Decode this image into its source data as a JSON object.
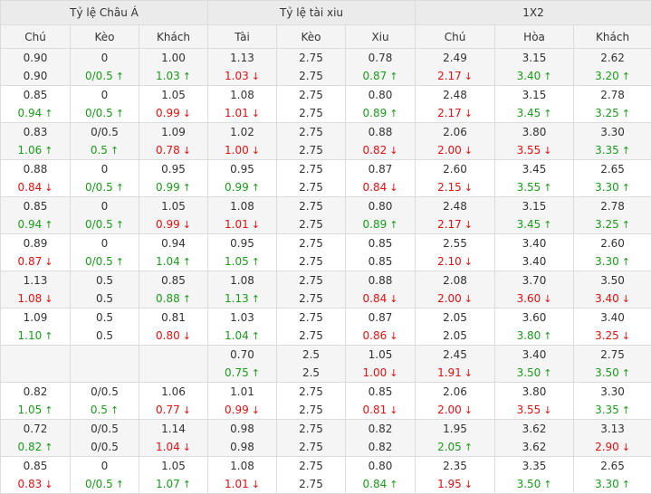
{
  "groups": [
    "Tỷ lệ Châu Á",
    "Tỷ lệ tài xiu",
    "1X2"
  ],
  "columns": [
    "Chú",
    "Kèo",
    "Khách",
    "Tài",
    "Kèo",
    "Xiu",
    "Chú",
    "Hòa",
    "Khách"
  ],
  "arrows": {
    "up": "↑",
    "down": "↓"
  },
  "colors": {
    "up": "#1b9a1b",
    "down": "#e01010",
    "header_bg": "#ebebeb",
    "subheader_bg": "#f4f4f4",
    "alt_row_bg": "#f5f5f5"
  },
  "rows": [
    {
      "cells": [
        {
          "top": "0.90",
          "bottom": "0.90",
          "dir": ""
        },
        {
          "top": "0",
          "bottom": "0/0.5",
          "dir": "up"
        },
        {
          "top": "1.00",
          "bottom": "1.03",
          "dir": "up"
        },
        {
          "top": "1.13",
          "bottom": "1.03",
          "dir": "down"
        },
        {
          "top": "2.75",
          "bottom": "2.75",
          "dir": ""
        },
        {
          "top": "0.78",
          "bottom": "0.87",
          "dir": "up"
        },
        {
          "top": "2.49",
          "bottom": "2.17",
          "dir": "down"
        },
        {
          "top": "3.15",
          "bottom": "3.40",
          "dir": "up"
        },
        {
          "top": "2.62",
          "bottom": "3.20",
          "dir": "up"
        }
      ]
    },
    {
      "cells": [
        {
          "top": "0.85",
          "bottom": "0.94",
          "dir": "up"
        },
        {
          "top": "0",
          "bottom": "0/0.5",
          "dir": "up"
        },
        {
          "top": "1.05",
          "bottom": "0.99",
          "dir": "down"
        },
        {
          "top": "1.08",
          "bottom": "1.01",
          "dir": "down"
        },
        {
          "top": "2.75",
          "bottom": "2.75",
          "dir": ""
        },
        {
          "top": "0.80",
          "bottom": "0.89",
          "dir": "up"
        },
        {
          "top": "2.48",
          "bottom": "2.17",
          "dir": "down"
        },
        {
          "top": "3.15",
          "bottom": "3.45",
          "dir": "up"
        },
        {
          "top": "2.78",
          "bottom": "3.25",
          "dir": "up"
        }
      ]
    },
    {
      "cells": [
        {
          "top": "0.83",
          "bottom": "1.06",
          "dir": "up"
        },
        {
          "top": "0/0.5",
          "bottom": "0.5",
          "dir": "up"
        },
        {
          "top": "1.09",
          "bottom": "0.78",
          "dir": "down"
        },
        {
          "top": "1.02",
          "bottom": "1.00",
          "dir": "down"
        },
        {
          "top": "2.75",
          "bottom": "2.75",
          "dir": ""
        },
        {
          "top": "0.88",
          "bottom": "0.82",
          "dir": "down"
        },
        {
          "top": "2.06",
          "bottom": "2.00",
          "dir": "down"
        },
        {
          "top": "3.80",
          "bottom": "3.55",
          "dir": "down"
        },
        {
          "top": "3.30",
          "bottom": "3.35",
          "dir": "up"
        }
      ]
    },
    {
      "cells": [
        {
          "top": "0.88",
          "bottom": "0.84",
          "dir": "down"
        },
        {
          "top": "0",
          "bottom": "0/0.5",
          "dir": "up"
        },
        {
          "top": "0.95",
          "bottom": "0.99",
          "dir": "up"
        },
        {
          "top": "0.95",
          "bottom": "0.99",
          "dir": "up"
        },
        {
          "top": "2.75",
          "bottom": "2.75",
          "dir": ""
        },
        {
          "top": "0.87",
          "bottom": "0.84",
          "dir": "down"
        },
        {
          "top": "2.60",
          "bottom": "2.15",
          "dir": "down"
        },
        {
          "top": "3.45",
          "bottom": "3.55",
          "dir": "up"
        },
        {
          "top": "2.65",
          "bottom": "3.30",
          "dir": "up"
        }
      ]
    },
    {
      "cells": [
        {
          "top": "0.85",
          "bottom": "0.94",
          "dir": "up"
        },
        {
          "top": "0",
          "bottom": "0/0.5",
          "dir": "up"
        },
        {
          "top": "1.05",
          "bottom": "0.99",
          "dir": "down"
        },
        {
          "top": "1.08",
          "bottom": "1.01",
          "dir": "down"
        },
        {
          "top": "2.75",
          "bottom": "2.75",
          "dir": ""
        },
        {
          "top": "0.80",
          "bottom": "0.89",
          "dir": "up"
        },
        {
          "top": "2.48",
          "bottom": "2.17",
          "dir": "down"
        },
        {
          "top": "3.15",
          "bottom": "3.45",
          "dir": "up"
        },
        {
          "top": "2.78",
          "bottom": "3.25",
          "dir": "up"
        }
      ]
    },
    {
      "cells": [
        {
          "top": "0.89",
          "bottom": "0.87",
          "dir": "down"
        },
        {
          "top": "0",
          "bottom": "0/0.5",
          "dir": "up"
        },
        {
          "top": "0.94",
          "bottom": "1.04",
          "dir": "up"
        },
        {
          "top": "0.95",
          "bottom": "1.05",
          "dir": "up"
        },
        {
          "top": "2.75",
          "bottom": "2.75",
          "dir": ""
        },
        {
          "top": "0.85",
          "bottom": "0.85",
          "dir": ""
        },
        {
          "top": "2.55",
          "bottom": "2.10",
          "dir": "down"
        },
        {
          "top": "3.40",
          "bottom": "3.40",
          "dir": ""
        },
        {
          "top": "2.60",
          "bottom": "3.30",
          "dir": "up"
        }
      ]
    },
    {
      "cells": [
        {
          "top": "1.13",
          "bottom": "1.08",
          "dir": "down"
        },
        {
          "top": "0.5",
          "bottom": "0.5",
          "dir": ""
        },
        {
          "top": "0.85",
          "bottom": "0.88",
          "dir": "up"
        },
        {
          "top": "1.08",
          "bottom": "1.13",
          "dir": "up"
        },
        {
          "top": "2.75",
          "bottom": "2.75",
          "dir": ""
        },
        {
          "top": "0.88",
          "bottom": "0.84",
          "dir": "down"
        },
        {
          "top": "2.08",
          "bottom": "2.00",
          "dir": "down"
        },
        {
          "top": "3.70",
          "bottom": "3.60",
          "dir": "down"
        },
        {
          "top": "3.50",
          "bottom": "3.40",
          "dir": "down"
        }
      ]
    },
    {
      "cells": [
        {
          "top": "1.09",
          "bottom": "1.10",
          "dir": "up"
        },
        {
          "top": "0.5",
          "bottom": "0.5",
          "dir": ""
        },
        {
          "top": "0.81",
          "bottom": "0.80",
          "dir": "down"
        },
        {
          "top": "1.03",
          "bottom": "1.04",
          "dir": "up"
        },
        {
          "top": "2.75",
          "bottom": "2.75",
          "dir": ""
        },
        {
          "top": "0.87",
          "bottom": "0.86",
          "dir": "down"
        },
        {
          "top": "2.05",
          "bottom": "2.05",
          "dir": ""
        },
        {
          "top": "3.60",
          "bottom": "3.80",
          "dir": "up"
        },
        {
          "top": "3.40",
          "bottom": "3.25",
          "dir": "down"
        }
      ]
    },
    {
      "cells": [
        {
          "top": "",
          "bottom": "",
          "dir": ""
        },
        {
          "top": "",
          "bottom": "",
          "dir": ""
        },
        {
          "top": "",
          "bottom": "",
          "dir": ""
        },
        {
          "top": "0.70",
          "bottom": "0.75",
          "dir": "up"
        },
        {
          "top": "2.5",
          "bottom": "2.5",
          "dir": ""
        },
        {
          "top": "1.05",
          "bottom": "1.00",
          "dir": "down"
        },
        {
          "top": "2.45",
          "bottom": "1.91",
          "dir": "down"
        },
        {
          "top": "3.40",
          "bottom": "3.50",
          "dir": "up"
        },
        {
          "top": "2.75",
          "bottom": "3.50",
          "dir": "up"
        }
      ]
    },
    {
      "cells": [
        {
          "top": "0.82",
          "bottom": "1.05",
          "dir": "up"
        },
        {
          "top": "0/0.5",
          "bottom": "0.5",
          "dir": "up"
        },
        {
          "top": "1.06",
          "bottom": "0.77",
          "dir": "down"
        },
        {
          "top": "1.01",
          "bottom": "0.99",
          "dir": "down"
        },
        {
          "top": "2.75",
          "bottom": "2.75",
          "dir": ""
        },
        {
          "top": "0.85",
          "bottom": "0.81",
          "dir": "down"
        },
        {
          "top": "2.06",
          "bottom": "2.00",
          "dir": "down"
        },
        {
          "top": "3.80",
          "bottom": "3.55",
          "dir": "down"
        },
        {
          "top": "3.30",
          "bottom": "3.35",
          "dir": "up"
        }
      ]
    },
    {
      "cells": [
        {
          "top": "0.72",
          "bottom": "0.82",
          "dir": "up"
        },
        {
          "top": "0/0.5",
          "bottom": "0/0.5",
          "dir": ""
        },
        {
          "top": "1.14",
          "bottom": "1.04",
          "dir": "down"
        },
        {
          "top": "0.98",
          "bottom": "0.98",
          "dir": ""
        },
        {
          "top": "2.75",
          "bottom": "2.75",
          "dir": ""
        },
        {
          "top": "0.82",
          "bottom": "0.82",
          "dir": ""
        },
        {
          "top": "1.95",
          "bottom": "2.05",
          "dir": "up"
        },
        {
          "top": "3.62",
          "bottom": "3.62",
          "dir": ""
        },
        {
          "top": "3.13",
          "bottom": "2.90",
          "dir": "down"
        }
      ]
    },
    {
      "cells": [
        {
          "top": "0.85",
          "bottom": "0.83",
          "dir": "down"
        },
        {
          "top": "0",
          "bottom": "0/0.5",
          "dir": "up"
        },
        {
          "top": "1.05",
          "bottom": "1.07",
          "dir": "up"
        },
        {
          "top": "1.08",
          "bottom": "1.01",
          "dir": "down"
        },
        {
          "top": "2.75",
          "bottom": "2.75",
          "dir": ""
        },
        {
          "top": "0.80",
          "bottom": "0.84",
          "dir": "up"
        },
        {
          "top": "2.35",
          "bottom": "1.95",
          "dir": "down"
        },
        {
          "top": "3.35",
          "bottom": "3.50",
          "dir": "up"
        },
        {
          "top": "2.65",
          "bottom": "3.30",
          "dir": "up"
        }
      ]
    }
  ]
}
